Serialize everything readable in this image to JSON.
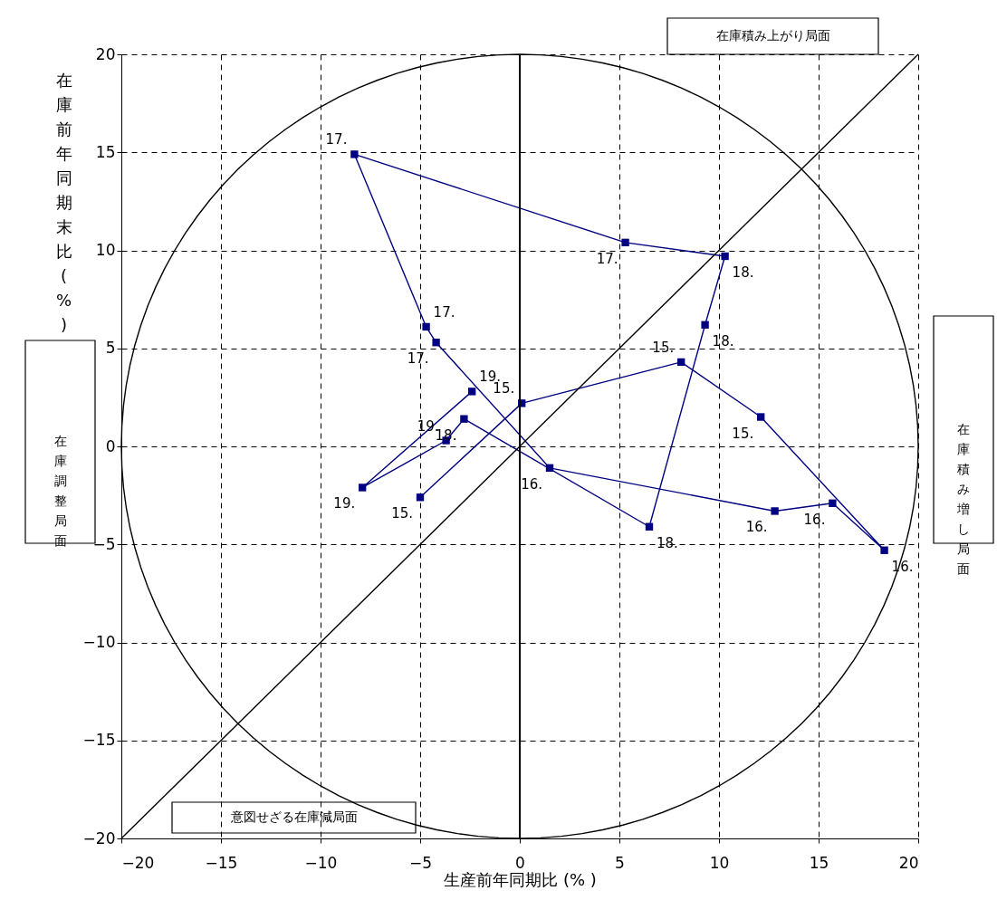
{
  "chart_data": {
    "type": "line",
    "xlabel": "生産前年同期比 (% )",
    "ylabel": "在庫前年同期末比(%)",
    "xlim": [
      -20,
      20
    ],
    "ylim": [
      -20,
      20
    ],
    "xticks": [
      -20,
      -15,
      -10,
      -5,
      0,
      5,
      10,
      15,
      20
    ],
    "yticks": [
      -20,
      -15,
      -10,
      -5,
      0,
      5,
      10,
      15,
      20
    ],
    "grid": true,
    "marker": "square",
    "line_style": "solid",
    "series": [
      {
        "color": "#000080",
        "x": [
          -5.0,
          0.1,
          8.1,
          12.1,
          18.3,
          15.7,
          12.8,
          1.5,
          -4.2,
          -4.7,
          -8.3,
          5.3,
          10.3,
          9.3,
          6.5,
          -2.8,
          -3.7,
          -7.9,
          -2.4
        ],
        "values": [
          -2.6,
          2.2,
          4.3,
          1.5,
          -5.3,
          -2.9,
          -3.3,
          -1.1,
          5.3,
          6.1,
          14.9,
          10.4,
          9.7,
          6.2,
          -4.1,
          1.4,
          0.3,
          -2.1,
          2.8
        ]
      },
      {
        "color": "#000000",
        "marker": "none",
        "x": [
          -20,
          20
        ],
        "values": [
          -20,
          20
        ]
      }
    ],
    "ref_lines": [
      {
        "axis": "x",
        "value": 0,
        "color": "#000000",
        "line_style": "solid"
      }
    ],
    "annotations": [
      "在庫積み上がり局面",
      "在庫積み増し局面",
      "意図せざる在庫減局面",
      "在庫調整局面",
      {
        "text": "15.",
        "x": -5.0,
        "y": -2.6
      },
      {
        "text": "15.",
        "x": 0.1,
        "y": 2.2
      },
      {
        "text": "15.",
        "x": 8.1,
        "y": 4.3
      },
      {
        "text": "15.",
        "x": 12.1,
        "y": 1.5
      },
      {
        "text": "16.",
        "x": 18.3,
        "y": -5.3
      },
      {
        "text": "16.",
        "x": 15.7,
        "y": -2.9
      },
      {
        "text": "16.",
        "x": 12.8,
        "y": -3.3
      },
      {
        "text": "16.",
        "x": 1.5,
        "y": -1.1
      },
      {
        "text": "17.",
        "x": -4.2,
        "y": 5.3
      },
      {
        "text": "17.",
        "x": -4.7,
        "y": 6.1
      },
      {
        "text": "17.",
        "x": -8.3,
        "y": 14.9
      },
      {
        "text": "17.",
        "x": 5.3,
        "y": 10.4
      },
      {
        "text": "18.",
        "x": 10.3,
        "y": 9.7
      },
      {
        "text": "18.",
        "x": 9.3,
        "y": 6.2
      },
      {
        "text": "18.",
        "x": 6.5,
        "y": -4.1
      },
      {
        "text": "18.",
        "x": -2.8,
        "y": 1.4
      },
      {
        "text": "19.",
        "x": -3.7,
        "y": 0.3
      },
      {
        "text": "19.",
        "x": -7.9,
        "y": -2.1
      },
      {
        "text": "19.",
        "x": -2.4,
        "y": 2.8
      }
    ]
  }
}
